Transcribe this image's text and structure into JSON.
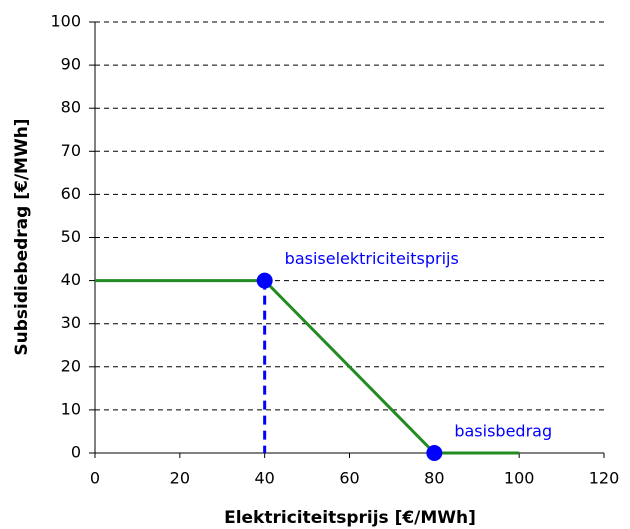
{
  "chart_data": {
    "type": "line",
    "xlabel": "Elektriciteitsprijs [€/MWh]",
    "ylabel": "Subsidiebedrag [€/MWh]",
    "x": [
      0,
      40,
      80,
      100
    ],
    "series": [
      {
        "color": "#228b22",
        "values": [
          40,
          40,
          0,
          0
        ]
      }
    ],
    "annotations": [
      {
        "text": "basiselektriciteitsprijs",
        "x": 40,
        "y": 40
      },
      {
        "text": "basisbedrag",
        "x": 80,
        "y": 0
      }
    ],
    "annotation_color": "#0000ff",
    "xlim": [
      0,
      120
    ],
    "xticks": [
      0,
      20,
      40,
      60,
      80,
      100,
      120
    ],
    "ylim": [
      0,
      100
    ],
    "yticks": [
      0,
      10,
      20,
      30,
      40,
      50,
      60,
      70,
      80,
      90,
      100
    ],
    "grid": true
  }
}
